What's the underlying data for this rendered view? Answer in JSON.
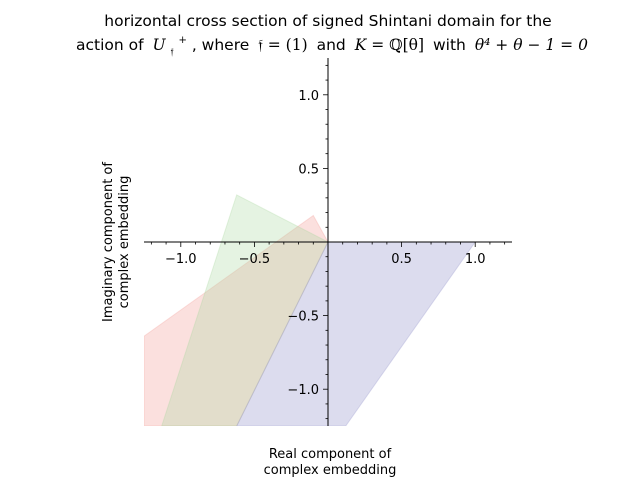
{
  "chart_data": {
    "type": "area",
    "title": {
      "line1": "horizontal cross section of signed Shintani domain for the",
      "line2_pre": "action of",
      "line2_group": "U",
      "line2_group_sub": "𝔣",
      "line2_group_sup": "+",
      "line2_mid1": ", where",
      "line2_f": "𝔣",
      "line2_eq1": " = (1)",
      "line2_mid2": "and",
      "line2_K": "K",
      "line2_eq2": " = ℚ[θ]",
      "line2_mid3": "with",
      "line2_poly": "θ⁴ + θ − 1 = 0"
    },
    "xlabel": [
      "Real component of",
      "complex embedding"
    ],
    "ylabel": [
      "Imaginary component of",
      "complex embedding"
    ],
    "xlim": [
      -1.25,
      1.25
    ],
    "ylim": [
      -1.25,
      1.25
    ],
    "xticks": [
      -1.0,
      -0.5,
      0.5,
      1.0
    ],
    "yticks": [
      1.0,
      0.5,
      -0.5,
      -1.0
    ],
    "tick_labels": {
      "x": [
        "−1.0",
        "−0.5",
        "0.5",
        "1.0"
      ],
      "y": [
        "1.0",
        "0.5",
        "−0.5",
        "−1.0"
      ]
    },
    "series": [
      {
        "color": "#f4a6a0",
        "opacity": 0.35,
        "polygon": [
          [
            -1.25,
            -0.64
          ],
          [
            -0.1,
            0.18
          ],
          [
            0.0,
            0.0
          ],
          [
            -0.62,
            -1.25
          ],
          [
            -1.25,
            -1.25
          ]
        ]
      },
      {
        "color": "#a8d8a0",
        "opacity": 0.3,
        "polygon": [
          [
            -0.62,
            0.32
          ],
          [
            0.0,
            0.0
          ],
          [
            -0.62,
            -1.25
          ],
          [
            -1.13,
            -1.25
          ]
        ]
      },
      {
        "color": "#a8a8d4",
        "opacity": 0.4,
        "polygon": [
          [
            0.0,
            0.0
          ],
          [
            1.0,
            0.0
          ],
          [
            0.12,
            -1.25
          ],
          [
            -0.62,
            -1.25
          ]
        ]
      }
    ],
    "grid": false,
    "legend": "none"
  }
}
